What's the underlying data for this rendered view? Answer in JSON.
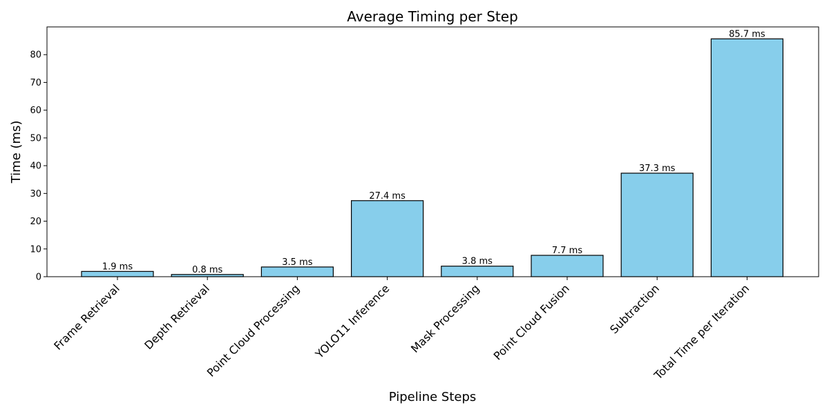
{
  "chart_data": {
    "type": "bar",
    "title": "Average Timing per Step",
    "xlabel": "Pipeline Steps",
    "ylabel": "Time (ms)",
    "categories": [
      "Frame Retrieval",
      "Depth Retrieval",
      "Point Cloud Processing",
      "YOLO11 Inference",
      "Mask Processing",
      "Point Cloud Fusion",
      "Subtraction",
      "Total Time per Iteration"
    ],
    "values": [
      1.9,
      0.8,
      3.5,
      27.4,
      3.8,
      7.7,
      37.3,
      85.7
    ],
    "data_labels": [
      "1.9 ms",
      "0.8 ms",
      "3.5 ms",
      "27.4 ms",
      "3.8 ms",
      "7.7 ms",
      "37.3 ms",
      "85.7 ms"
    ],
    "yticks": [
      0,
      10,
      20,
      30,
      40,
      50,
      60,
      70,
      80
    ],
    "ylim": [
      0,
      90
    ],
    "grid": false,
    "bar_color": "#87CEEB",
    "bar_edge_color": "#000000"
  }
}
